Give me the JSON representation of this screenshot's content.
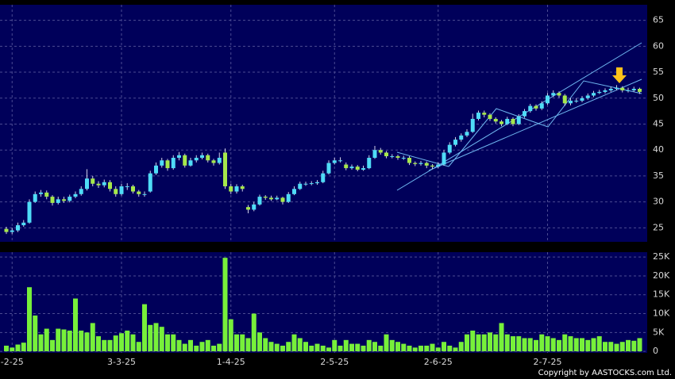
{
  "chart_data": [
    {
      "type": "candlestick",
      "open": [
        24.8,
        24.2,
        24.5,
        25.5,
        26,
        30,
        31.5,
        31.8,
        31,
        29.8,
        30.5,
        30.2,
        31,
        31.5,
        32.5,
        34.5,
        33.5,
        33.2,
        33.8,
        32.5,
        31.5,
        33,
        33,
        32,
        31.5,
        32,
        35.5,
        37,
        38,
        36.5,
        38.5,
        39,
        37,
        38,
        38.5,
        39,
        38,
        37.5,
        39.5,
        33,
        32,
        33,
        29,
        28.5,
        29.5,
        31,
        30.8,
        30.5,
        30.8,
        30,
        31.5,
        32.5,
        33.5,
        33.5,
        33.6,
        33.8,
        35.5,
        37.5,
        38,
        37.2,
        36.5,
        36.8,
        36.2,
        36.5,
        38.5,
        40,
        39.5,
        38.8,
        38.8,
        38.5,
        38.5,
        37.5,
        37.3,
        37.5,
        37,
        36.8,
        37.2,
        39.5,
        41,
        42,
        42.8,
        43.5,
        46,
        47.2,
        46.8,
        46,
        45.5,
        45,
        46,
        45,
        46.5,
        47.5,
        48.5,
        48,
        49,
        50.5,
        51,
        50.5,
        49,
        49.5,
        49.5,
        50,
        50.5,
        51,
        51.2,
        51.5,
        51.8,
        52,
        51.5,
        51.5,
        51.8
      ],
      "high": [
        25.2,
        25,
        26,
        26.5,
        30.5,
        32,
        32.3,
        32.2,
        31.3,
        31,
        31,
        31.4,
        32,
        33,
        36.3,
        35,
        34,
        34.3,
        34.2,
        33,
        33.5,
        33.6,
        33.3,
        32.3,
        32,
        36,
        37.6,
        38.5,
        38.3,
        39,
        39.6,
        39.3,
        38.5,
        39,
        39.5,
        39.3,
        38.3,
        39.5,
        40.3,
        33.5,
        33.4,
        33.3,
        29.4,
        30,
        31.4,
        31.3,
        31.2,
        31.2,
        31,
        31.9,
        33,
        33.9,
        33.9,
        34,
        34.2,
        36,
        38,
        38.5,
        38.6,
        37.6,
        37.2,
        37.1,
        37,
        39,
        40.8,
        40.4,
        39.8,
        39.2,
        39.1,
        38.9,
        38.8,
        37.8,
        37.9,
        37.8,
        37.3,
        37.6,
        40,
        41.5,
        42.5,
        43.2,
        44,
        47,
        47.6,
        47.6,
        47.1,
        46.3,
        45.8,
        46.4,
        46.3,
        46.9,
        47.9,
        48.9,
        48.8,
        49.4,
        51,
        51.5,
        51.3,
        50.8,
        50,
        50,
        50.4,
        50.9,
        51.4,
        51.6,
        51.9,
        52.2,
        52.5,
        52.3,
        52,
        52.2,
        52
      ],
      "low": [
        23.8,
        23.8,
        24.2,
        25.2,
        25.8,
        29.8,
        31,
        30.5,
        29.3,
        29.5,
        29.8,
        29.9,
        30.7,
        31.2,
        32.2,
        33,
        32.7,
        32.8,
        32,
        31,
        31.2,
        32.3,
        31.6,
        31,
        31,
        31.8,
        35.2,
        36.6,
        36,
        36.2,
        38,
        36.6,
        36.8,
        37.6,
        38.2,
        37.6,
        37,
        37.2,
        32.5,
        31.5,
        31.6,
        32,
        27.8,
        28.2,
        29.3,
        30.4,
        30.2,
        30.3,
        29.5,
        29.8,
        31.3,
        32.3,
        33.1,
        33.2,
        33.3,
        33.6,
        35.3,
        37.2,
        37.6,
        36.1,
        36.2,
        35.9,
        36,
        36.3,
        38.3,
        39.1,
        38.4,
        38.4,
        38.1,
        38.1,
        37.1,
        36.9,
        37,
        36.5,
        36.3,
        36.5,
        37,
        39.2,
        40.7,
        41.6,
        42.5,
        43.3,
        45.7,
        46.3,
        45.6,
        45.1,
        44.6,
        44.8,
        44.6,
        44.8,
        46.2,
        47.2,
        47.6,
        47.7,
        48.7,
        50.2,
        50.1,
        48.5,
        48.6,
        49.1,
        49.2,
        49.7,
        50.2,
        50.8,
        50.9,
        51.2,
        51.5,
        51.1,
        51.1,
        51.2,
        50.8
      ],
      "close": [
        24.2,
        24.5,
        25.5,
        26,
        30,
        31.5,
        31.8,
        31,
        29.8,
        30.5,
        30.2,
        31,
        31.5,
        32.5,
        34.5,
        33.5,
        33.2,
        33.8,
        32.5,
        31.5,
        33,
        33,
        32,
        31.5,
        31.5,
        35.5,
        37,
        38,
        36.5,
        38.5,
        39,
        37,
        38,
        38.5,
        39,
        38,
        37.5,
        38.5,
        33,
        32,
        33,
        32.5,
        28.5,
        29.5,
        31,
        30.8,
        30.5,
        30.8,
        30,
        31.5,
        32.5,
        33.5,
        33.5,
        33.6,
        33.8,
        35.5,
        37.5,
        38,
        38,
        36.5,
        36.8,
        36.2,
        36.5,
        38.5,
        40,
        39.5,
        38.8,
        38.8,
        38.5,
        38.5,
        37.5,
        37.3,
        37.5,
        37,
        36.8,
        37.2,
        39.5,
        41,
        42,
        42.8,
        43.5,
        46,
        47.2,
        46.8,
        46,
        45.5,
        45,
        46,
        45,
        46.5,
        47.5,
        48.5,
        48,
        49,
        50.5,
        51,
        50.5,
        49,
        49.5,
        49.5,
        50,
        50.5,
        51,
        51.2,
        51.5,
        51.8,
        52,
        51.5,
        51.5,
        51.8,
        51.2
      ],
      "ylim": [
        22.3,
        68
      ],
      "yticks": [
        25,
        30,
        35,
        40,
        45,
        50,
        55,
        60,
        65
      ],
      "up_color": "#4fdcf7",
      "down_color": "#a6e84b",
      "grid": true
    },
    {
      "type": "bar",
      "categories": [
        null,
        "-2-25",
        null,
        null,
        null,
        null,
        null,
        null,
        null,
        null,
        null,
        null,
        null,
        null,
        null,
        null,
        null,
        null,
        null,
        null,
        "3-3-25",
        null,
        null,
        null,
        null,
        null,
        null,
        null,
        null,
        null,
        null,
        null,
        null,
        null,
        null,
        null,
        null,
        null,
        null,
        "1-4-25",
        null,
        null,
        null,
        null,
        null,
        null,
        null,
        null,
        null,
        null,
        null,
        null,
        null,
        null,
        null,
        null,
        null,
        "2-5-25",
        null,
        null,
        null,
        null,
        null,
        null,
        null,
        null,
        null,
        null,
        null,
        null,
        null,
        null,
        null,
        null,
        null,
        "2-6-25",
        null,
        null,
        null,
        null,
        null,
        null,
        null,
        null,
        null,
        null,
        null,
        null,
        null,
        null,
        null,
        null,
        null,
        null,
        "2-7-25",
        null,
        null,
        null,
        null,
        null,
        null,
        null,
        null,
        null,
        null,
        null,
        null,
        null,
        null,
        null,
        null
      ],
      "values": [
        1500,
        1000,
        1800,
        2300,
        17000,
        9500,
        4500,
        6000,
        3000,
        6000,
        5800,
        5500,
        14000,
        5500,
        5000,
        7500,
        4000,
        3000,
        3000,
        4200,
        4800,
        5500,
        4500,
        2500,
        12500,
        7000,
        7500,
        6500,
        4500,
        4500,
        3000,
        2000,
        3000,
        1500,
        2500,
        3000,
        1500,
        2000,
        24800,
        8500,
        4500,
        4500,
        3500,
        10000,
        5000,
        3500,
        2500,
        2000,
        1500,
        2500,
        4500,
        3500,
        2500,
        1500,
        2000,
        1500,
        1000,
        3000,
        1500,
        3000,
        2000,
        2000,
        1500,
        3000,
        2500,
        1500,
        4500,
        3000,
        2500,
        2000,
        1500,
        1000,
        1500,
        1500,
        2000,
        1000,
        2500,
        1500,
        1000,
        2500,
        4500,
        5500,
        4500,
        4500,
        5000,
        4500,
        7500,
        4500,
        4000,
        4000,
        3500,
        3500,
        3000,
        4500,
        4000,
        3500,
        3000,
        4500,
        4000,
        3500,
        3500,
        3000,
        3500,
        4000,
        2500,
        2500,
        2000,
        2500,
        3000,
        2800,
        3500
      ],
      "ylim": [
        -400,
        26300
      ],
      "yticks": [
        0,
        {
          "value": 5000,
          "label": "5K"
        },
        {
          "value": 10000,
          "label": "10K"
        },
        {
          "value": 15000,
          "label": "15K"
        },
        {
          "value": 20000,
          "label": "20K"
        },
        {
          "value": 25000,
          "label": "25K"
        }
      ],
      "color": "#77f03a",
      "grid": true
    }
  ],
  "footer": "Copyright by AASTOCKS.com Ltd."
}
